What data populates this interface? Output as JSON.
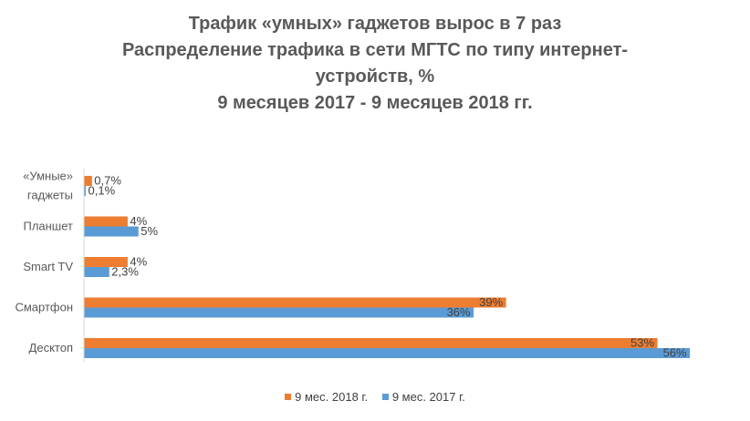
{
  "colors": {
    "series_2018": "#ED7D31",
    "series_2017": "#5B9BD5"
  },
  "chart_data": {
    "type": "bar",
    "orientation": "horizontal",
    "title_lines": [
      "Трафик «умных» гаджетов вырос в 7 раз",
      "Распределение трафика в сети МГТС по типу интернет-",
      "устройств, %",
      "9 месяцев 2017 - 9 месяцев 2018 гг."
    ],
    "categories": [
      [
        "«Умные»",
        "гаджеты"
      ],
      [
        "Планшет"
      ],
      [
        "Smart TV"
      ],
      [
        "Смартфон"
      ],
      [
        "Десктоп"
      ]
    ],
    "series": [
      {
        "name": "9 мес. 2018 г.",
        "values": [
          0.7,
          4,
          4,
          39,
          53
        ],
        "labels": [
          "0,7%",
          "4%",
          "4%",
          "39%",
          "53%"
        ]
      },
      {
        "name": "9 мес. 2017 г.",
        "values": [
          0.1,
          5,
          2.3,
          36,
          56
        ],
        "labels": [
          "0,1%",
          "5%",
          "2,3%",
          "36%",
          "56%"
        ]
      }
    ],
    "xlim": [
      0,
      56
    ],
    "grid": false,
    "legend_position": "bottom"
  }
}
